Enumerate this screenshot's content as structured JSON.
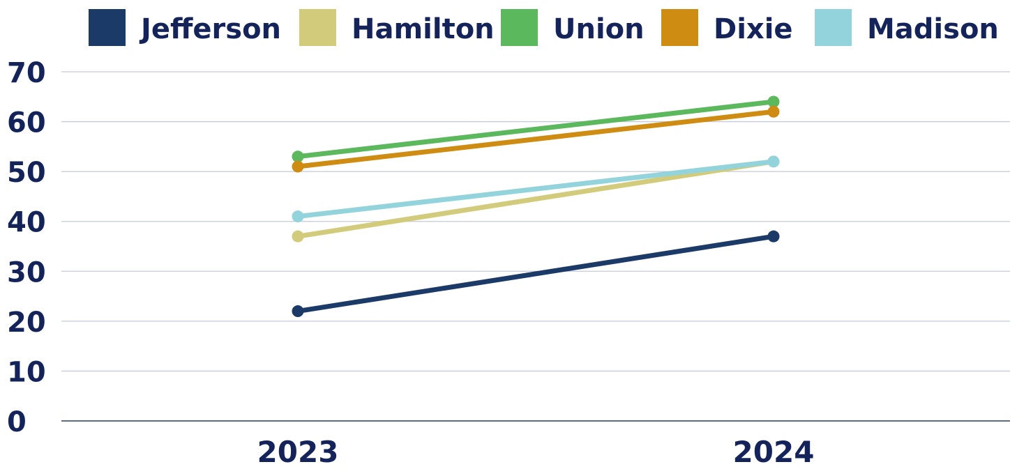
{
  "chart_data": {
    "type": "line",
    "title": "",
    "xlabel": "",
    "ylabel": "",
    "categories": [
      "2023",
      "2024"
    ],
    "ylim": [
      0,
      70
    ],
    "yticks": [
      0,
      10,
      20,
      30,
      40,
      50,
      60,
      70
    ],
    "grid": true,
    "legend_position": "top",
    "series": [
      {
        "name": "Jefferson",
        "color": "#1b3a68",
        "values": [
          22,
          37
        ]
      },
      {
        "name": "Hamilton",
        "color": "#d2cb7b",
        "values": [
          37,
          52
        ]
      },
      {
        "name": "Union",
        "color": "#5cb85c",
        "values": [
          53,
          64
        ]
      },
      {
        "name": "Dixie",
        "color": "#cf8c12",
        "values": [
          51,
          62
        ]
      },
      {
        "name": "Madison",
        "color": "#93d3db",
        "values": [
          41,
          52
        ]
      }
    ],
    "colors": {
      "text": "#14245a",
      "grid": "#c5cad8",
      "axis": "#5a6b8f"
    }
  }
}
